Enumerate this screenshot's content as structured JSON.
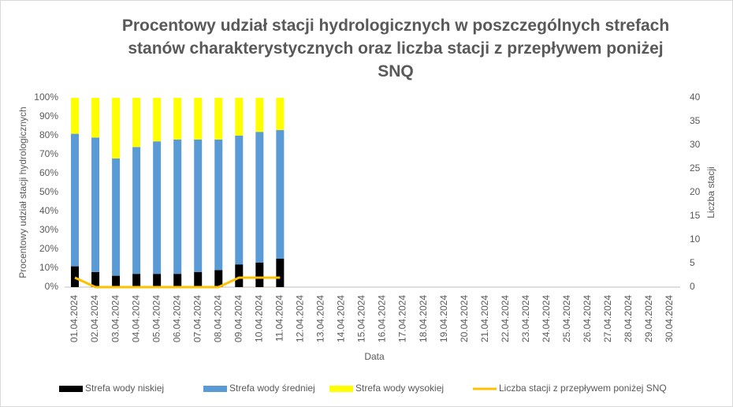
{
  "chart_data": {
    "type": "bar",
    "stacked": true,
    "title": "Procentowy udział stacji hydrologicznych w poszczególnych strefach stanów charakterystycznych oraz liczba stacji z przepływem poniżej SNQ",
    "x_label": "Data",
    "y_label": "Procentowy udział stacji hydrologicznych",
    "y2_label": "Liczba stacji",
    "categories": [
      "01.04.2024",
      "02.04.2024",
      "03.04.2024",
      "04.04.2024",
      "05.04.2024",
      "06.04.2024",
      "07.04.2024",
      "08.04.2024",
      "09.04.2024",
      "10.04.2024",
      "11.04.2024",
      "12.04.2024",
      "13.04.2024",
      "14.04.2024",
      "15.04.2024",
      "16.04.2024",
      "17.04.2024",
      "18.04.2024",
      "19.04.2024",
      "20.04.2024",
      "21.04.2024",
      "22.04.2024",
      "23.04.2024",
      "24.04.2024",
      "25.04.2024",
      "26.04.2024",
      "27.04.2024",
      "28.04.2024",
      "29.04.2024",
      "30.04.2024"
    ],
    "series": [
      {
        "name": "Strefa wody niskiej",
        "color": "#000000",
        "values": [
          11,
          8,
          6,
          7,
          7,
          7,
          8,
          9,
          12,
          13,
          15,
          null,
          null,
          null,
          null,
          null,
          null,
          null,
          null,
          null,
          null,
          null,
          null,
          null,
          null,
          null,
          null,
          null,
          null,
          null
        ]
      },
      {
        "name": "Strefa wody średniej",
        "color": "#5b9bd5",
        "values": [
          70,
          71,
          62,
          67,
          70,
          71,
          70,
          69,
          68,
          69,
          68,
          null,
          null,
          null,
          null,
          null,
          null,
          null,
          null,
          null,
          null,
          null,
          null,
          null,
          null,
          null,
          null,
          null,
          null,
          null
        ]
      },
      {
        "name": "Strefa wody wysokiej",
        "color": "#ffff00",
        "values": [
          19,
          21,
          32,
          26,
          23,
          22,
          22,
          22,
          20,
          18,
          17,
          null,
          null,
          null,
          null,
          null,
          null,
          null,
          null,
          null,
          null,
          null,
          null,
          null,
          null,
          null,
          null,
          null,
          null,
          null
        ]
      },
      {
        "name": "Liczba stacji z przepływem poniżej SNQ",
        "type": "line",
        "axis": "y2",
        "color": "#ffc000",
        "values": [
          2,
          0,
          0,
          0,
          0,
          0,
          0,
          0,
          2,
          2,
          2,
          null,
          null,
          null,
          null,
          null,
          null,
          null,
          null,
          null,
          null,
          null,
          null,
          null,
          null,
          null,
          null,
          null,
          null,
          null
        ]
      }
    ],
    "ylim": [
      0,
      100
    ],
    "yticks": [
      {
        "value": 0,
        "label": "0%"
      },
      {
        "value": 10,
        "label": "10%"
      },
      {
        "value": 20,
        "label": "20%"
      },
      {
        "value": 30,
        "label": "30%"
      },
      {
        "value": 40,
        "label": "40%"
      },
      {
        "value": 50,
        "label": "50%"
      },
      {
        "value": 60,
        "label": "60%"
      },
      {
        "value": 70,
        "label": "70%"
      },
      {
        "value": 80,
        "label": "80%"
      },
      {
        "value": 90,
        "label": "90%"
      },
      {
        "value": 100,
        "label": "100%"
      }
    ],
    "y2lim": [
      0,
      40
    ],
    "y2ticks": [
      0,
      5,
      10,
      15,
      20,
      25,
      30,
      35,
      40
    ],
    "grid": false,
    "legend": "bottom"
  }
}
